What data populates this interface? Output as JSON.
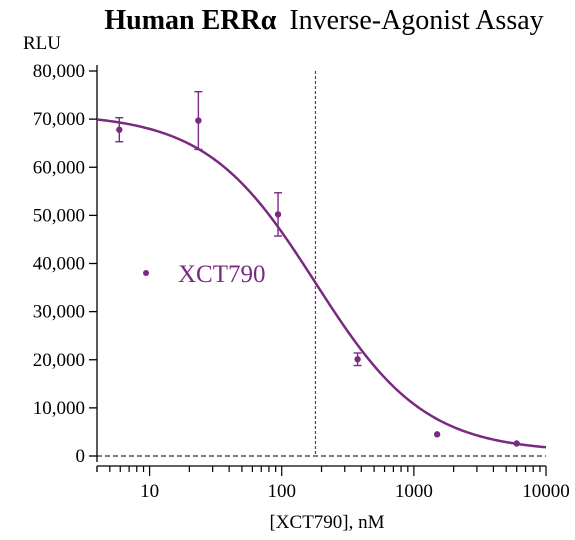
{
  "chart_data": {
    "type": "scatter",
    "title_bold": "Human ERRα",
    "title_rest": "Inverse-Agonist Assay",
    "ylabel": "RLU",
    "xlabel": "[XCT790], nM",
    "x_scale": "log",
    "xlim": [
      4,
      10000
    ],
    "ylim": [
      0,
      80000
    ],
    "x_ticks": [
      10,
      100,
      1000,
      10000
    ],
    "x_tick_labels": [
      "10",
      "100",
      "1000",
      "10000"
    ],
    "y_ticks": [
      0,
      10000,
      20000,
      30000,
      40000,
      50000,
      60000,
      70000,
      80000
    ],
    "y_tick_labels": [
      "0",
      "10,000",
      "20,000",
      "30,000",
      "40,000",
      "50,000",
      "60,000",
      "70,000",
      "80,000"
    ],
    "series": [
      {
        "name": "XCT790",
        "color": "#7b2a82",
        "x": [
          5.9,
          23.4,
          93.8,
          375,
          1500,
          6000
        ],
        "y": [
          67800,
          69700,
          50200,
          20100,
          4500,
          2600
        ],
        "y_err": [
          2500,
          6000,
          4500,
          1300,
          0,
          0
        ]
      }
    ],
    "fit_curve": {
      "model": "4PL",
      "top": 71200,
      "bottom": 800,
      "ic50": 180,
      "hill": 1.05
    },
    "reference_line_x": 180,
    "baseline_y": 0,
    "legend_position": "center-left",
    "grid": false
  }
}
